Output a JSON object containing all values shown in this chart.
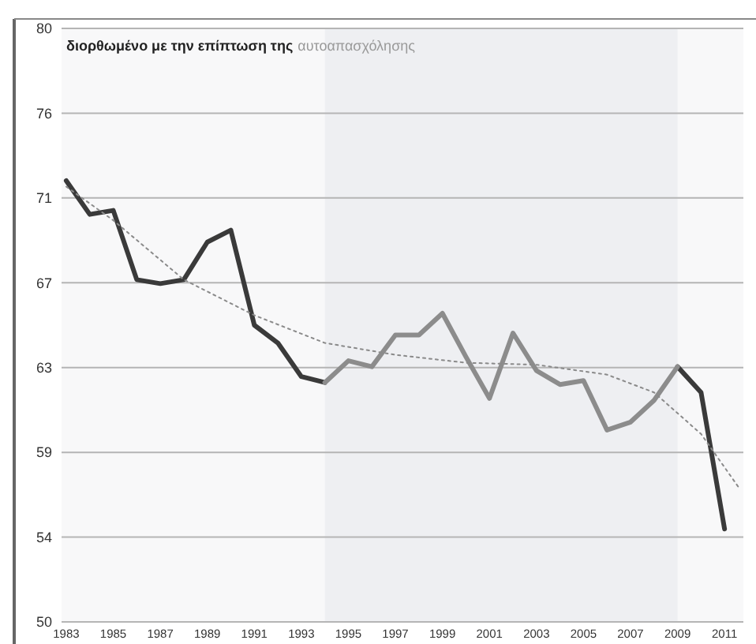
{
  "chart_data": {
    "type": "line",
    "title": "διορθωμένο με την επίπτωση της",
    "subtitle": "αυτοαπασχόλησης",
    "x": [
      1983,
      1984,
      1985,
      1986,
      1987,
      1988,
      1989,
      1990,
      1991,
      1992,
      1993,
      1994,
      1995,
      1996,
      1997,
      1998,
      1999,
      2000,
      2001,
      2002,
      2003,
      2004,
      2005,
      2006,
      2007,
      2008,
      2009,
      2010,
      2011
    ],
    "series": [
      {
        "color": "#3a3a3a",
        "values": [
          72.3,
          70.6,
          70.8,
          67.3,
          67.1,
          67.3,
          69.2,
          69.8,
          65.0,
          64.1,
          62.4,
          62.1,
          null,
          null,
          null,
          null,
          null,
          null,
          null,
          null,
          null,
          null,
          null,
          null,
          null,
          null,
          62.9,
          61.6,
          54.7
        ]
      },
      {
        "color": "#8c8c8c",
        "values": [
          null,
          null,
          null,
          null,
          null,
          null,
          null,
          null,
          null,
          null,
          null,
          62.1,
          63.2,
          62.9,
          64.5,
          64.5,
          65.6,
          63.4,
          61.3,
          64.6,
          62.7,
          62.0,
          62.2,
          59.7,
          60.1,
          61.2,
          62.9,
          null,
          null
        ]
      },
      {
        "type": "line",
        "color": "#8a8a8a",
        "line_style": "dotted",
        "x": [
          1983,
          1985,
          1988,
          1991,
          1994,
          1997,
          2000,
          2003,
          2006,
          2008,
          2010,
          2011.6
        ],
        "values": [
          72.0,
          70.3,
          67.3,
          65.5,
          64.1,
          63.5,
          63.1,
          63.0,
          62.5,
          61.6,
          59.5,
          56.8
        ]
      }
    ],
    "xlim": [
      1982.8,
      2011.8
    ],
    "xticks": [
      1983,
      1985,
      1987,
      1989,
      1991,
      1993,
      1995,
      1997,
      1999,
      2001,
      2003,
      2005,
      2007,
      2009,
      2011
    ],
    "ylim": [
      50,
      80
    ],
    "yticks": [
      80,
      {
        "value": 75.71,
        "label": "76"
      },
      {
        "value": 71.43,
        "label": "71"
      },
      {
        "value": 67.14,
        "label": "67"
      },
      {
        "value": 62.86,
        "label": "63"
      },
      {
        "value": 58.57,
        "label": "59"
      },
      {
        "value": 54.29,
        "label": "54"
      },
      50
    ],
    "bands": [
      {
        "axis": "x",
        "from": 1994,
        "to": 2009,
        "color": "#eeeff2"
      }
    ],
    "grid": "y",
    "marker": "none",
    "line_style": "solid"
  }
}
